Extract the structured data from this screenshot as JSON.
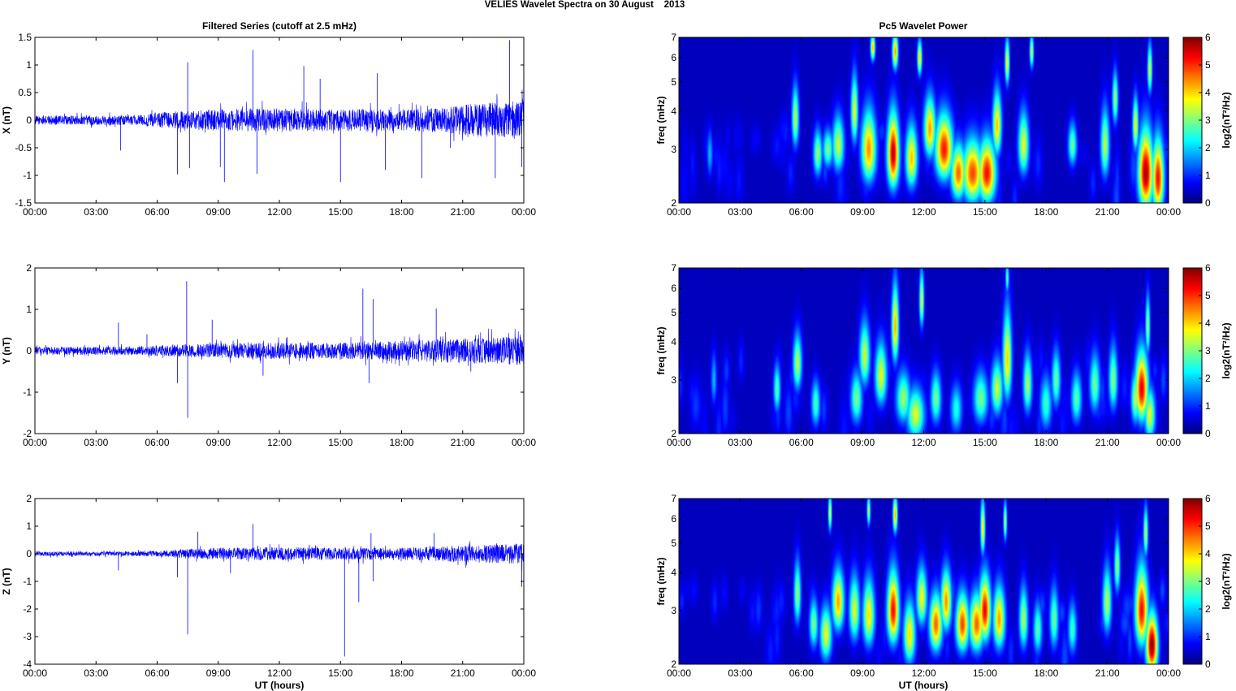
{
  "figure": {
    "title": "VELIES Wavelet Spectra on 30 August    2013",
    "left_title": "Filtered Series (cutoff at 2.5 mHz)",
    "right_title": "Pc5 Wavelet Power",
    "xlabel": "UT (hours)",
    "colors": {
      "series": "#0000ff",
      "background": "#ffffff",
      "axes": "#000000",
      "colormap": "jet",
      "wavelet_background": "#00008f"
    }
  },
  "chart_data": [
    {
      "type": "line",
      "component": "X",
      "ylabel": "X (nT)",
      "xlim": [
        0,
        24
      ],
      "ylim": [
        -1.5,
        1.5
      ],
      "xticks": [
        "00:00",
        "03:00",
        "06:00",
        "09:00",
        "12:00",
        "15:00",
        "18:00",
        "21:00",
        "00:00"
      ],
      "yticks": [
        "-1.5",
        "-1",
        "-0.5",
        "0",
        "0.5",
        "1",
        "1.5"
      ],
      "ytick_values": [
        -1.5,
        -1,
        -0.5,
        0,
        0.5,
        1,
        1.5
      ],
      "noise_profile": [
        [
          0,
          0.08
        ],
        [
          5,
          0.09
        ],
        [
          6,
          0.14
        ],
        [
          9,
          0.2
        ],
        [
          12,
          0.22
        ],
        [
          15,
          0.2
        ],
        [
          18,
          0.2
        ],
        [
          20,
          0.22
        ],
        [
          21.5,
          0.3
        ],
        [
          24,
          0.35
        ]
      ],
      "spikes": [
        [
          4.2,
          -0.55
        ],
        [
          7.0,
          -0.98
        ],
        [
          7.5,
          1.05
        ],
        [
          7.6,
          -0.87
        ],
        [
          9.1,
          -0.85
        ],
        [
          9.3,
          -1.12
        ],
        [
          10.7,
          1.27
        ],
        [
          10.9,
          -0.97
        ],
        [
          13.2,
          0.98
        ],
        [
          14.0,
          0.75
        ],
        [
          15.0,
          -1.12
        ],
        [
          16.8,
          0.85
        ],
        [
          17.2,
          -0.9
        ],
        [
          19.0,
          -1.05
        ],
        [
          20.4,
          -0.5
        ],
        [
          22.6,
          -1.05
        ],
        [
          23.3,
          1.45
        ],
        [
          23.9,
          -0.85
        ]
      ]
    },
    {
      "type": "line",
      "component": "Y",
      "ylabel": "Y (nT)",
      "xlim": [
        0,
        24
      ],
      "ylim": [
        -2,
        2
      ],
      "xticks": [
        "00:00",
        "03:00",
        "06:00",
        "09:00",
        "12:00",
        "15:00",
        "18:00",
        "21:00",
        "00:00"
      ],
      "yticks": [
        "-2",
        "-1",
        "0",
        "1",
        "2"
      ],
      "ytick_values": [
        -2,
        -1,
        0,
        1,
        2
      ],
      "noise_profile": [
        [
          0,
          0.1
        ],
        [
          5,
          0.1
        ],
        [
          6,
          0.13
        ],
        [
          9,
          0.18
        ],
        [
          12,
          0.2
        ],
        [
          15,
          0.2
        ],
        [
          18,
          0.24
        ],
        [
          21,
          0.3
        ],
        [
          24,
          0.35
        ]
      ],
      "spikes": [
        [
          4.1,
          0.68
        ],
        [
          5.5,
          0.4
        ],
        [
          7.0,
          -0.78
        ],
        [
          7.45,
          1.68
        ],
        [
          7.5,
          -1.62
        ],
        [
          8.7,
          0.75
        ],
        [
          11.2,
          -0.6
        ],
        [
          16.1,
          1.5
        ],
        [
          16.6,
          1.25
        ],
        [
          16.4,
          -0.78
        ],
        [
          19.7,
          1.02
        ],
        [
          21.4,
          -0.5
        ]
      ]
    },
    {
      "type": "line",
      "component": "Z",
      "ylabel": "Z (nT)",
      "xlim": [
        0,
        24
      ],
      "ylim": [
        -4,
        2
      ],
      "xticks": [
        "00:00",
        "03:00",
        "06:00",
        "09:00",
        "12:00",
        "15:00",
        "18:00",
        "21:00",
        "00:00"
      ],
      "yticks": [
        "-4",
        "-3",
        "-2",
        "-1",
        "0",
        "1",
        "2"
      ],
      "ytick_values": [
        -4,
        -3,
        -2,
        -1,
        0,
        1,
        2
      ],
      "noise_profile": [
        [
          0,
          0.08
        ],
        [
          4,
          0.08
        ],
        [
          6,
          0.1
        ],
        [
          8,
          0.2
        ],
        [
          12,
          0.25
        ],
        [
          15,
          0.22
        ],
        [
          18,
          0.22
        ],
        [
          21,
          0.3
        ],
        [
          24,
          0.38
        ]
      ],
      "spikes": [
        [
          4.1,
          -0.6
        ],
        [
          7.0,
          -0.85
        ],
        [
          7.5,
          -2.92
        ],
        [
          8.0,
          0.8
        ],
        [
          9.6,
          -0.7
        ],
        [
          10.7,
          1.08
        ],
        [
          15.2,
          -3.72
        ],
        [
          15.9,
          -1.75
        ],
        [
          16.6,
          -1.0
        ],
        [
          16.5,
          0.75
        ],
        [
          19.6,
          0.75
        ],
        [
          23.9,
          -1.2
        ]
      ]
    },
    {
      "type": "heatmap",
      "component": "X",
      "ylabel": "freq (mHz)",
      "colorbar_label": "log2(nT²/Hz)",
      "colorbar_ticks": [
        "0",
        "1",
        "2",
        "3",
        "4",
        "5",
        "6"
      ],
      "clim": [
        0,
        6
      ],
      "xlim": [
        0,
        24
      ],
      "ylim": [
        2,
        7
      ],
      "yscale": "log",
      "xticks": [
        "00:00",
        "03:00",
        "06:00",
        "09:00",
        "12:00",
        "15:00",
        "18:00",
        "21:00",
        "00:00"
      ],
      "yticks": [
        "2",
        "3",
        "4",
        "5",
        "6",
        "7"
      ],
      "ytick_values": [
        2,
        3,
        4,
        5,
        6,
        7
      ],
      "blobs": [
        [
          1.5,
          2.9,
          0.1,
          0.35,
          1.6
        ],
        [
          5.7,
          3.8,
          0.12,
          0.6,
          3.2
        ],
        [
          6.8,
          2.9,
          0.15,
          0.35,
          3.0
        ],
        [
          7.3,
          3.0,
          0.18,
          0.3,
          2.8
        ],
        [
          7.8,
          3.1,
          0.2,
          0.45,
          3.3
        ],
        [
          8.6,
          4.0,
          0.12,
          0.7,
          3.5
        ],
        [
          9.3,
          3.0,
          0.25,
          0.55,
          4.3
        ],
        [
          9.5,
          6.5,
          0.08,
          0.45,
          4.0
        ],
        [
          10.5,
          2.9,
          0.2,
          0.55,
          5.6
        ],
        [
          10.6,
          6.3,
          0.1,
          0.6,
          4.2
        ],
        [
          11.4,
          2.8,
          0.2,
          0.45,
          4.0
        ],
        [
          11.8,
          6.0,
          0.08,
          0.55,
          3.8
        ],
        [
          12.3,
          3.5,
          0.2,
          0.55,
          4.2
        ],
        [
          13.0,
          3.0,
          0.3,
          0.5,
          5.1
        ],
        [
          13.7,
          2.5,
          0.25,
          0.35,
          4.6
        ],
        [
          14.4,
          2.5,
          0.35,
          0.4,
          4.8
        ],
        [
          15.1,
          2.5,
          0.3,
          0.4,
          5.2
        ],
        [
          15.6,
          3.6,
          0.15,
          0.6,
          4.0
        ],
        [
          16.1,
          5.8,
          0.08,
          0.7,
          3.6
        ],
        [
          16.9,
          3.1,
          0.18,
          0.5,
          3.5
        ],
        [
          17.3,
          6.3,
          0.07,
          0.55,
          3.3
        ],
        [
          19.3,
          3.1,
          0.15,
          0.35,
          2.7
        ],
        [
          20.9,
          3.1,
          0.15,
          0.55,
          3.2
        ],
        [
          21.4,
          4.4,
          0.1,
          0.6,
          3.0
        ],
        [
          22.4,
          3.6,
          0.1,
          0.5,
          3.6
        ],
        [
          22.9,
          2.5,
          0.25,
          0.5,
          5.8
        ],
        [
          23.5,
          2.4,
          0.2,
          0.45,
          5.2
        ],
        [
          23.1,
          5.5,
          0.08,
          0.7,
          3.4
        ]
      ]
    },
    {
      "type": "heatmap",
      "component": "Y",
      "ylabel": "freq (mHz)",
      "colorbar_label": "log2(nT²/Hz)",
      "colorbar_ticks": [
        "0",
        "1",
        "2",
        "3",
        "4",
        "5",
        "6"
      ],
      "clim": [
        0,
        6
      ],
      "xlim": [
        0,
        24
      ],
      "ylim": [
        2,
        7
      ],
      "yscale": "log",
      "xticks": [
        "00:00",
        "03:00",
        "06:00",
        "09:00",
        "12:00",
        "15:00",
        "18:00",
        "21:00",
        "00:00"
      ],
      "yticks": [
        "2",
        "3",
        "4",
        "5",
        "6",
        "7"
      ],
      "ytick_values": [
        2,
        3,
        4,
        5,
        6,
        7
      ],
      "blobs": [
        [
          1.7,
          3.0,
          0.1,
          0.4,
          1.6
        ],
        [
          4.8,
          2.8,
          0.12,
          0.35,
          2.6
        ],
        [
          5.8,
          3.4,
          0.15,
          0.5,
          3.2
        ],
        [
          6.7,
          2.5,
          0.15,
          0.3,
          2.5
        ],
        [
          8.7,
          2.6,
          0.2,
          0.35,
          2.8
        ],
        [
          9.1,
          3.6,
          0.18,
          0.6,
          3.3
        ],
        [
          9.9,
          3.1,
          0.2,
          0.5,
          3.5
        ],
        [
          10.6,
          4.5,
          0.12,
          0.9,
          4.1
        ],
        [
          11.0,
          2.6,
          0.25,
          0.35,
          3.0
        ],
        [
          11.6,
          2.3,
          0.3,
          0.3,
          3.4
        ],
        [
          11.9,
          5.5,
          0.08,
          0.8,
          3.4
        ],
        [
          12.6,
          2.6,
          0.18,
          0.35,
          2.8
        ],
        [
          13.6,
          2.4,
          0.2,
          0.3,
          2.2
        ],
        [
          14.8,
          2.6,
          0.25,
          0.35,
          2.8
        ],
        [
          15.6,
          2.8,
          0.2,
          0.4,
          3.3
        ],
        [
          16.1,
          3.5,
          0.15,
          0.8,
          3.9
        ],
        [
          16.1,
          6.5,
          0.06,
          0.5,
          2.6
        ],
        [
          17.1,
          2.9,
          0.15,
          0.45,
          3.1
        ],
        [
          18.0,
          2.5,
          0.2,
          0.35,
          2.4
        ],
        [
          18.5,
          3.0,
          0.15,
          0.45,
          2.7
        ],
        [
          19.5,
          2.6,
          0.18,
          0.35,
          2.6
        ],
        [
          20.4,
          2.9,
          0.18,
          0.45,
          2.7
        ],
        [
          21.3,
          3.0,
          0.15,
          0.5,
          2.9
        ],
        [
          22.7,
          2.8,
          0.22,
          0.5,
          5.4
        ],
        [
          23.1,
          2.3,
          0.18,
          0.3,
          3.5
        ],
        [
          23.0,
          4.5,
          0.08,
          0.7,
          3.0
        ],
        [
          22.4,
          2.6,
          0.15,
          0.35,
          3.2
        ]
      ]
    },
    {
      "type": "heatmap",
      "component": "Z",
      "ylabel": "freq (mHz)",
      "colorbar_label": "log2(nT²/Hz)",
      "colorbar_ticks": [
        "0",
        "1",
        "2",
        "3",
        "4",
        "5",
        "6"
      ],
      "clim": [
        0,
        6
      ],
      "xlim": [
        0,
        24
      ],
      "ylim": [
        2,
        7
      ],
      "yscale": "log",
      "xticks": [
        "00:00",
        "03:00",
        "06:00",
        "09:00",
        "12:00",
        "15:00",
        "18:00",
        "21:00",
        "00:00"
      ],
      "yticks": [
        "2",
        "3",
        "4",
        "5",
        "6",
        "7"
      ],
      "ytick_values": [
        2,
        3,
        4,
        5,
        6,
        7
      ],
      "blobs": [
        [
          5.8,
          3.4,
          0.12,
          0.55,
          3.0
        ],
        [
          6.6,
          2.7,
          0.15,
          0.35,
          2.8
        ],
        [
          7.2,
          2.5,
          0.2,
          0.35,
          3.5
        ],
        [
          7.8,
          3.2,
          0.2,
          0.5,
          4.2
        ],
        [
          7.4,
          6.3,
          0.06,
          0.6,
          3.5
        ],
        [
          8.6,
          3.0,
          0.18,
          0.5,
          3.4
        ],
        [
          9.3,
          2.9,
          0.2,
          0.5,
          3.8
        ],
        [
          9.3,
          6.4,
          0.06,
          0.5,
          3.2
        ],
        [
          10.5,
          3.0,
          0.2,
          0.55,
          5.2
        ],
        [
          10.6,
          6.2,
          0.08,
          0.6,
          4.1
        ],
        [
          11.3,
          2.5,
          0.2,
          0.4,
          3.8
        ],
        [
          11.9,
          3.3,
          0.18,
          0.5,
          3.6
        ],
        [
          12.6,
          2.7,
          0.22,
          0.4,
          4.6
        ],
        [
          13.1,
          3.2,
          0.18,
          0.5,
          4.3
        ],
        [
          13.9,
          2.7,
          0.22,
          0.4,
          4.8
        ],
        [
          14.6,
          2.7,
          0.25,
          0.4,
          4.6
        ],
        [
          15.0,
          3.0,
          0.2,
          0.5,
          5.3
        ],
        [
          14.9,
          5.6,
          0.08,
          0.8,
          3.7
        ],
        [
          15.7,
          2.8,
          0.2,
          0.45,
          4.2
        ],
        [
          16.0,
          5.9,
          0.06,
          0.6,
          3.2
        ],
        [
          16.9,
          2.8,
          0.15,
          0.45,
          3.1
        ],
        [
          17.6,
          2.6,
          0.15,
          0.35,
          2.6
        ],
        [
          18.4,
          2.8,
          0.15,
          0.45,
          2.7
        ],
        [
          19.3,
          2.6,
          0.15,
          0.35,
          2.4
        ],
        [
          21.0,
          3.2,
          0.15,
          0.55,
          3.2
        ],
        [
          21.5,
          4.2,
          0.1,
          0.6,
          3.0
        ],
        [
          22.7,
          3.0,
          0.22,
          0.6,
          5.2
        ],
        [
          23.2,
          2.3,
          0.2,
          0.35,
          6.0
        ],
        [
          22.9,
          5.4,
          0.08,
          0.7,
          3.2
        ]
      ]
    }
  ]
}
